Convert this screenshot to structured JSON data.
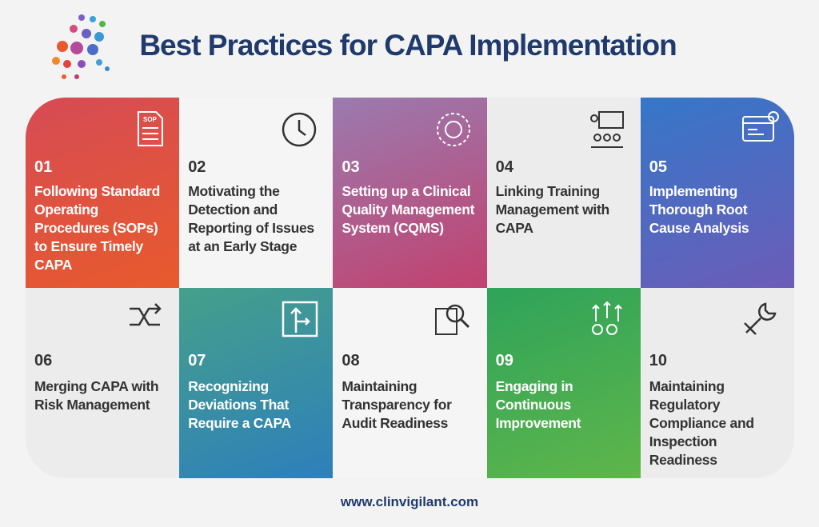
{
  "header": {
    "title": "Best Practices for CAPA Implementation"
  },
  "cards": [
    {
      "number": "01",
      "text": "Following Standard Operating Procedures (SOPs) to Ensure Timely CAPA"
    },
    {
      "number": "02",
      "text": "Motivating the Detection and Reporting of Issues at an Early Stage"
    },
    {
      "number": "03",
      "text": "Setting up a Clinical Quality Management System (CQMS)"
    },
    {
      "number": "04",
      "text": "Linking Training Management with CAPA"
    },
    {
      "number": "05",
      "text": "Implementing Thorough Root Cause Analysis"
    },
    {
      "number": "06",
      "text": "Merging CAPA with Risk Management"
    },
    {
      "number": "07",
      "text": "Recognizing Deviations That Require a CAPA"
    },
    {
      "number": "08",
      "text": "Maintaining Transparency for Audit Readiness"
    },
    {
      "number": "09",
      "text": "Engaging in Continuous Improvement"
    },
    {
      "number": "10",
      "text": "Maintaining Regulatory Compliance and Inspection Readiness"
    }
  ],
  "footer": {
    "url": "www.clinvigilant.com"
  }
}
